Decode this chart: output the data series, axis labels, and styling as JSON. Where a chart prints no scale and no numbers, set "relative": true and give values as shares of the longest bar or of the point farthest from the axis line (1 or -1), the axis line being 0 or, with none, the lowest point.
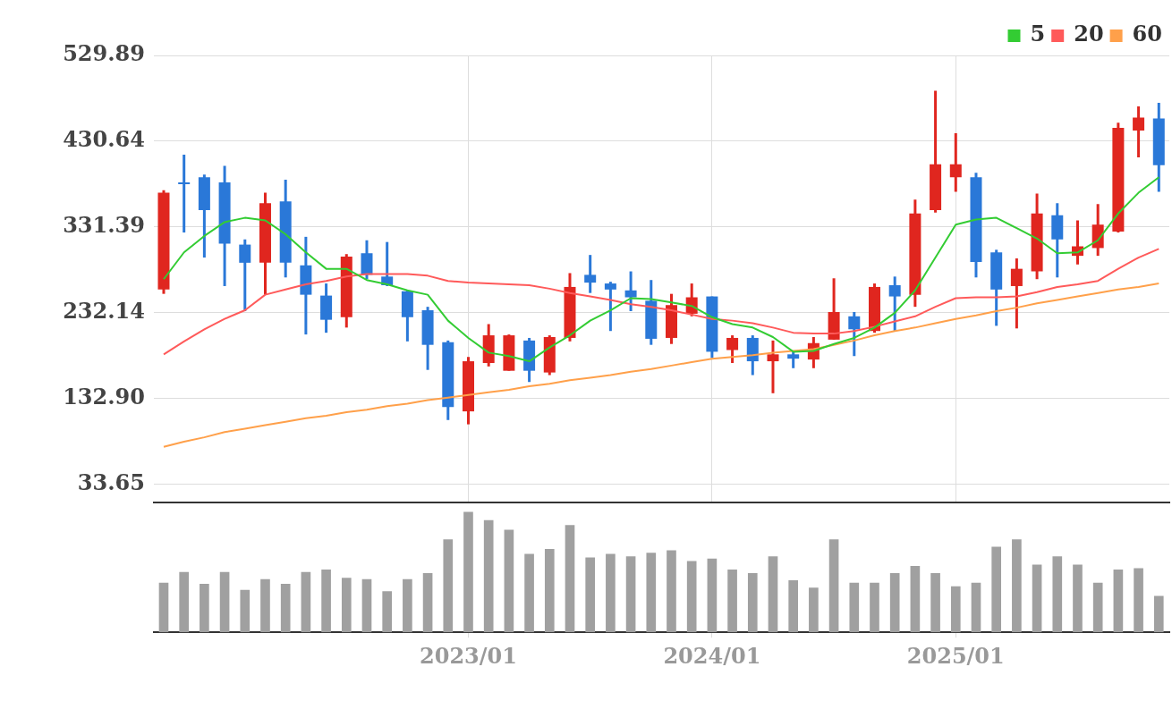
{
  "chart_data": [
    {
      "type": "candlestick",
      "x": [
        "2021-10",
        "2021-11",
        "2021-12",
        "2022-01",
        "2022-02",
        "2022-03",
        "2022-04",
        "2022-05",
        "2022-06",
        "2022-07",
        "2022-08",
        "2022-09",
        "2022-10",
        "2022-11",
        "2022-12",
        "2023-01",
        "2023-02",
        "2023-03",
        "2023-04",
        "2023-05",
        "2023-06",
        "2023-07",
        "2023-08",
        "2023-09",
        "2023-10",
        "2023-11",
        "2023-12",
        "2024-01",
        "2024-02",
        "2024-03",
        "2024-04",
        "2024-05",
        "2024-06",
        "2024-07",
        "2024-08",
        "2024-09",
        "2024-10",
        "2024-11",
        "2024-12",
        "2025-01",
        "2025-02",
        "2025-03",
        "2025-04",
        "2025-05",
        "2025-06",
        "2025-07",
        "2025-08",
        "2025-09",
        "2025-10",
        "2025-11"
      ],
      "ohlc": [
        [
          259,
          374,
          254,
          371
        ],
        [
          383,
          415,
          325,
          381
        ],
        [
          389,
          392,
          296,
          351
        ],
        [
          383,
          402,
          263,
          312
        ],
        [
          311,
          317,
          234,
          290
        ],
        [
          290,
          371,
          253,
          359
        ],
        [
          361,
          386,
          273,
          290
        ],
        [
          287,
          320,
          207,
          253
        ],
        [
          252,
          266,
          209,
          224
        ],
        [
          227,
          300,
          215,
          297
        ],
        [
          301,
          316,
          271,
          276
        ],
        [
          274,
          314,
          263,
          264
        ],
        [
          257,
          258,
          199,
          227
        ],
        [
          235,
          239,
          166,
          195
        ],
        [
          198,
          200,
          108,
          123
        ],
        [
          118,
          181,
          103,
          176
        ],
        [
          174,
          219,
          170,
          206
        ],
        [
          165,
          207,
          165,
          206
        ],
        [
          200,
          203,
          152,
          165
        ],
        [
          163,
          206,
          160,
          204
        ],
        [
          203,
          278,
          199,
          262
        ],
        [
          276,
          299,
          255,
          267
        ],
        [
          266,
          268,
          211,
          259
        ],
        [
          258,
          280,
          234,
          250
        ],
        [
          246,
          270,
          195,
          202
        ],
        [
          203,
          254,
          196,
          241
        ],
        [
          231,
          266,
          228,
          250
        ],
        [
          251,
          251,
          180,
          187
        ],
        [
          189,
          206,
          174,
          203
        ],
        [
          203,
          206,
          160,
          176
        ],
        [
          176,
          200,
          139,
          184
        ],
        [
          184,
          187,
          168,
          179
        ],
        [
          178,
          204,
          168,
          197
        ],
        [
          201,
          272,
          201,
          233
        ],
        [
          228,
          233,
          182,
          213
        ],
        [
          211,
          266,
          209,
          262
        ],
        [
          264,
          274,
          211,
          251
        ],
        [
          253,
          363,
          239,
          347
        ],
        [
          351,
          489,
          348,
          404
        ],
        [
          389,
          440,
          372,
          404
        ],
        [
          389,
          394,
          273,
          291
        ],
        [
          302,
          305,
          217,
          259
        ],
        [
          263,
          295,
          214,
          283
        ],
        [
          280,
          370,
          271,
          347
        ],
        [
          345,
          359,
          273,
          317
        ],
        [
          298,
          339,
          288,
          309
        ],
        [
          307,
          358,
          298,
          334
        ],
        [
          326,
          452,
          325,
          446
        ],
        [
          443,
          471,
          412,
          458
        ],
        [
          457,
          475,
          372,
          403
        ]
      ],
      "colors": [
        "#e0261f",
        "#2a78d8",
        "#2a78d8",
        "#2a78d8",
        "#2a78d8",
        "#e0261f",
        "#2a78d8",
        "#2a78d8",
        "#2a78d8",
        "#e0261f",
        "#2a78d8",
        "#2a78d8",
        "#2a78d8",
        "#2a78d8",
        "#2a78d8",
        "#e0261f",
        "#e0261f",
        "#e0261f",
        "#2a78d8",
        "#e0261f",
        "#e0261f",
        "#2a78d8",
        "#2a78d8",
        "#2a78d8",
        "#2a78d8",
        "#e0261f",
        "#e0261f",
        "#2a78d8",
        "#e0261f",
        "#2a78d8",
        "#e0261f",
        "#2a78d8",
        "#e0261f",
        "#e0261f",
        "#2a78d8",
        "#e0261f",
        "#2a78d8",
        "#e0261f",
        "#e0261f",
        "#e0261f",
        "#2a78d8",
        "#2a78d8",
        "#e0261f",
        "#e0261f",
        "#2a78d8",
        "#e0261f",
        "#e0261f",
        "#e0261f",
        "#e0261f",
        "#2a78d8"
      ],
      "series": [
        {
          "name": "5",
          "type": "line",
          "color": "#33cc33",
          "values": [
            271,
            302,
            321,
            337,
            342,
            339,
            323,
            302,
            283,
            283,
            270,
            265,
            258,
            253,
            223,
            203,
            186,
            182,
            176,
            192,
            206,
            223,
            235,
            249,
            248,
            244,
            240,
            227,
            219,
            215,
            204,
            187,
            188,
            196,
            203,
            215,
            232,
            258,
            296,
            334,
            340,
            342,
            330,
            318,
            301,
            302,
            316,
            347,
            371,
            389
          ]
        },
        {
          "name": "20",
          "type": "line",
          "color": "#ff5a5a",
          "values": [
            184,
            199,
            213,
            225,
            235,
            253,
            259,
            265,
            269,
            274,
            277,
            277,
            277,
            275,
            269,
            267,
            266,
            265,
            264,
            260,
            255,
            251,
            247,
            242,
            239,
            235,
            230,
            225,
            223,
            220,
            215,
            209,
            208,
            208,
            211,
            216,
            222,
            228,
            239,
            249,
            250,
            250,
            251,
            256,
            262,
            265,
            269,
            283,
            296,
            306
          ]
        },
        {
          "name": "60",
          "type": "line",
          "color": "#ffa04a",
          "values": [
            77,
            83,
            88,
            94,
            98,
            102,
            106,
            110,
            113,
            117,
            120,
            124,
            127,
            131,
            134,
            137,
            140,
            143,
            147,
            150,
            154,
            157,
            160,
            164,
            167,
            171,
            175,
            179,
            181,
            183,
            186,
            188,
            190,
            195,
            200,
            206,
            211,
            215,
            220,
            225,
            229,
            234,
            238,
            243,
            247,
            251,
            255,
            259,
            262,
            266
          ]
        }
      ],
      "xlim": [
        "2021-09-17",
        "2025-11-17"
      ],
      "xticks": [
        "2023-01",
        "2024-01",
        "2025-01"
      ],
      "ylim": [
        13,
        529.89
      ],
      "yticks": [
        33.65,
        {
          "value": 132.9,
          "label": "132.90"
        },
        232.14,
        331.39,
        430.64,
        529.89
      ],
      "grid": true,
      "legend": "top right",
      "tick_labels": "y",
      "marker": "none",
      "line_style": "solid"
    },
    {
      "type": "bar",
      "relative": true,
      "color": "#a0a0a0",
      "x": [
        "2021-10",
        "2021-11",
        "2021-12",
        "2022-01",
        "2022-02",
        "2022-03",
        "2022-04",
        "2022-05",
        "2022-06",
        "2022-07",
        "2022-08",
        "2022-09",
        "2022-10",
        "2022-11",
        "2022-12",
        "2023-01",
        "2023-02",
        "2023-03",
        "2023-04",
        "2023-05",
        "2023-06",
        "2023-07",
        "2023-08",
        "2023-09",
        "2023-10",
        "2023-11",
        "2023-12",
        "2024-01",
        "2024-02",
        "2024-03",
        "2024-04",
        "2024-05",
        "2024-06",
        "2024-07",
        "2024-08",
        "2024-09",
        "2024-10",
        "2024-11",
        "2024-12",
        "2025-01",
        "2025-02",
        "2025-03",
        "2025-04",
        "2025-05",
        "2025-06",
        "2025-07",
        "2025-08",
        "2025-09",
        "2025-10",
        "2025-11"
      ],
      "values": [
        0.41,
        0.5,
        0.4,
        0.5,
        0.35,
        0.44,
        0.4,
        0.5,
        0.52,
        0.45,
        0.44,
        0.34,
        0.44,
        0.49,
        0.77,
        1,
        0.93,
        0.85,
        0.65,
        0.69,
        0.89,
        0.62,
        0.65,
        0.63,
        0.66,
        0.68,
        0.59,
        0.61,
        0.52,
        0.49,
        0.63,
        0.43,
        0.37,
        0.77,
        0.41,
        0.41,
        0.49,
        0.55,
        0.49,
        0.38,
        0.41,
        0.71,
        0.77,
        0.56,
        0.63,
        0.56,
        0.41,
        0.52,
        0.53,
        0.3
      ],
      "xlim": [
        "2021-09-17",
        "2025-11-17"
      ],
      "xticks": [
        {
          "value": "2023-01",
          "label": "2023/01"
        },
        {
          "value": "2024-01",
          "label": "2024/01"
        },
        {
          "value": "2025-01",
          "label": "2025/01"
        }
      ],
      "tick_labels": "x"
    }
  ]
}
